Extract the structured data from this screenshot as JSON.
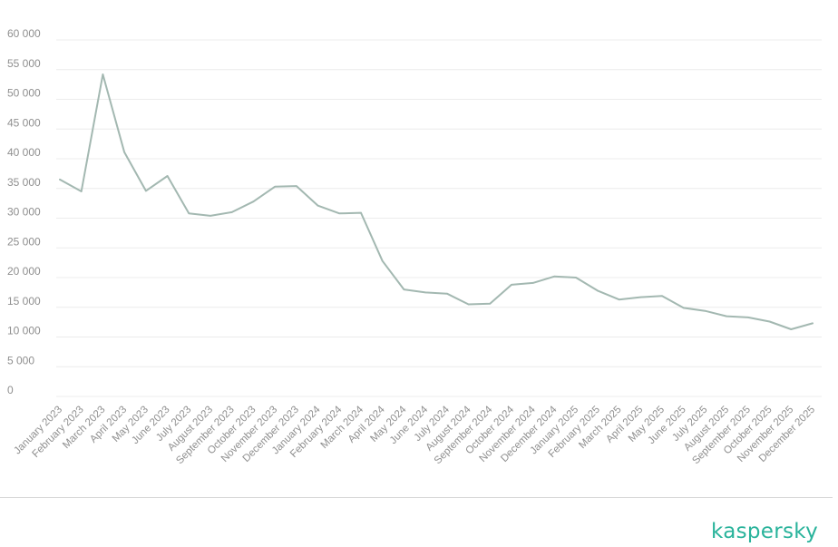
{
  "brand": {
    "logo_text": "kaspersky",
    "color": "#29b39b"
  },
  "chart_data": {
    "type": "line",
    "title": "",
    "xlabel": "",
    "ylabel": "",
    "ylim": [
      0,
      60000
    ],
    "yticks": [
      0,
      5000,
      10000,
      15000,
      20000,
      25000,
      30000,
      35000,
      40000,
      45000,
      50000,
      55000,
      60000
    ],
    "ytick_labels": [
      "0",
      "5 000",
      "10 000",
      "15 000",
      "20 000",
      "25 000",
      "30 000",
      "35 000",
      "40 000",
      "45 000",
      "50 000",
      "55 000",
      "60 000"
    ],
    "grid": true,
    "legend": "none",
    "line_color": "#a3b8b1",
    "categories": [
      "January 2023",
      "February 2023",
      "March 2023",
      "April 2023",
      "May 2023",
      "June 2023",
      "July 2023",
      "August 2023",
      "September 2023",
      "October 2023",
      "November 2023",
      "December 2023",
      "January 2024",
      "February 2024",
      "March 2024",
      "April 2024",
      "May 2024",
      "June 2024",
      "July 2024",
      "August 2024",
      "September 2024",
      "October 2024",
      "November 2024",
      "December 2024",
      "January 2025",
      "February 2025",
      "March 2025",
      "April 2025",
      "May 2025",
      "June 2025",
      "July 2025",
      "August 2025",
      "September 2025",
      "October 2025",
      "November 2025",
      "December 2025"
    ],
    "series": [
      {
        "values": [
          36500,
          34500,
          54200,
          41100,
          34600,
          37100,
          30800,
          30400,
          31000,
          32800,
          35300,
          35400,
          32100,
          30800,
          30900,
          22800,
          18000,
          17500,
          17300,
          15500,
          15600,
          18800,
          19100,
          20200,
          20000,
          17800,
          16300,
          16700,
          16900,
          14900,
          14400,
          13500,
          13300,
          12600,
          11300,
          12300
        ]
      }
    ]
  }
}
